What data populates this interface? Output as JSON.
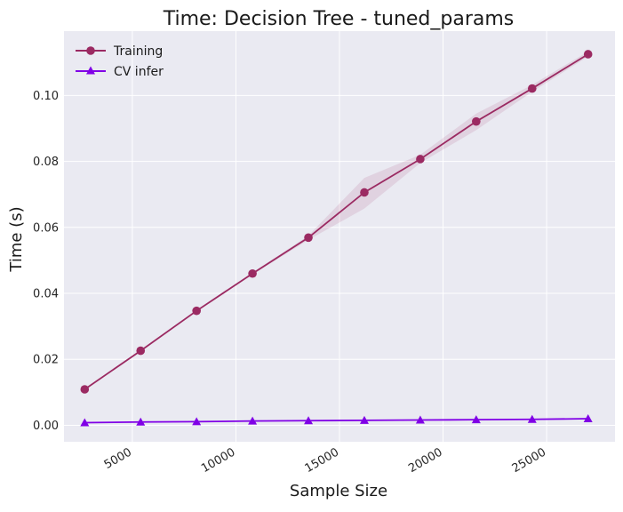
{
  "chart_data": {
    "type": "line",
    "title": "Time: Decision Tree - tuned_params",
    "xlabel": "Sample Size",
    "ylabel": "Time (s)",
    "xlim": [
      1700,
      28300
    ],
    "ylim": [
      -0.005,
      0.1195
    ],
    "x": [
      2700,
      5400,
      8100,
      10800,
      13500,
      16200,
      18900,
      21600,
      24300,
      27000
    ],
    "x_ticks": [
      5000,
      10000,
      15000,
      20000,
      25000
    ],
    "x_tick_labels": [
      "5000",
      "10000",
      "15000",
      "20000",
      "25000"
    ],
    "y_ticks": [
      0.0,
      0.02,
      0.04,
      0.06,
      0.08,
      0.1
    ],
    "y_tick_labels": [
      "0.00",
      "0.02",
      "0.04",
      "0.06",
      "0.08",
      "0.10"
    ],
    "grid": true,
    "legend_position": "top-left",
    "series": [
      {
        "name": "Training",
        "color": "#9b2a62",
        "marker": "circle",
        "values": [
          0.0109,
          0.0226,
          0.0347,
          0.046,
          0.0569,
          0.0706,
          0.0807,
          0.0921,
          0.1021,
          0.1125
        ],
        "band_low": [
          0.0107,
          0.0224,
          0.0344,
          0.0457,
          0.0562,
          0.0657,
          0.0795,
          0.0895,
          0.1011,
          0.1118
        ],
        "band_high": [
          0.0111,
          0.0228,
          0.035,
          0.0463,
          0.0575,
          0.075,
          0.082,
          0.0945,
          0.1032,
          0.1133
        ]
      },
      {
        "name": "CV infer",
        "color": "#8000e6",
        "marker": "triangle",
        "values": [
          0.0008,
          0.001,
          0.0011,
          0.0013,
          0.0014,
          0.0015,
          0.0016,
          0.0017,
          0.0018,
          0.002
        ]
      }
    ]
  },
  "colors": {
    "plot_background": "#eaeaf2",
    "grid": "#ffffff",
    "band": "#9b2a62"
  }
}
